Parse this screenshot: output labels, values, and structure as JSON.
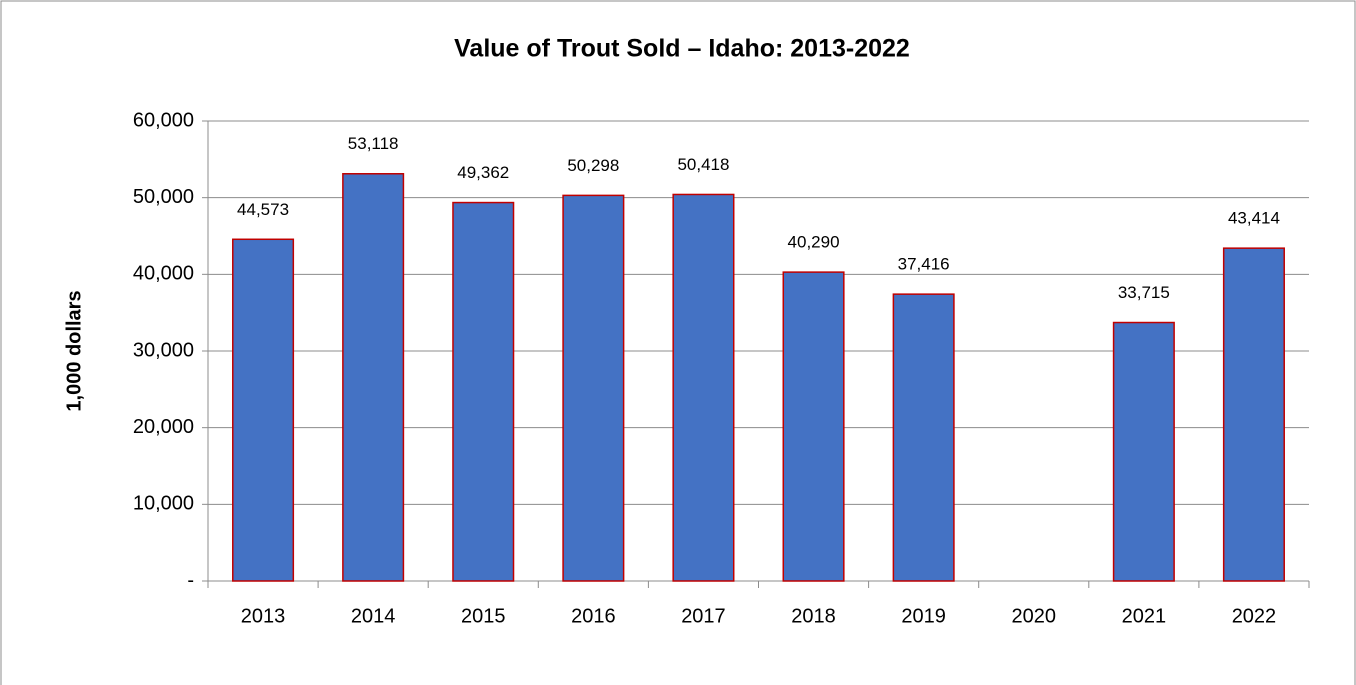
{
  "chart_data": {
    "type": "bar",
    "title": "Value of Trout Sold – Idaho: 2013-2022",
    "y_axis_label": "1,000 dollars",
    "categories": [
      "2013",
      "2014",
      "2015",
      "2016",
      "2017",
      "2018",
      "2019",
      "2020",
      "2021",
      "2022"
    ],
    "values": [
      44573,
      53118,
      49362,
      50298,
      50418,
      40290,
      37416,
      null,
      33715,
      43414
    ],
    "value_labels": [
      "44,573",
      "53,118",
      "49,362",
      "50,298",
      "50,418",
      "40,290",
      "37,416",
      null,
      "33,715",
      "43,414"
    ],
    "color": "#4472c4",
    "edge_color": "#c00000",
    "ylim": [
      0,
      60000
    ],
    "yticks": [
      {
        "value": 0,
        "label": "-"
      },
      {
        "value": 10000,
        "label": "10,000"
      },
      {
        "value": 20000,
        "label": "20,000"
      },
      {
        "value": 30000,
        "label": "30,000"
      },
      {
        "value": 40000,
        "label": "40,000"
      },
      {
        "value": 50000,
        "label": "50,000"
      },
      {
        "value": 60000,
        "label": "60,000"
      }
    ],
    "grid": true
  }
}
